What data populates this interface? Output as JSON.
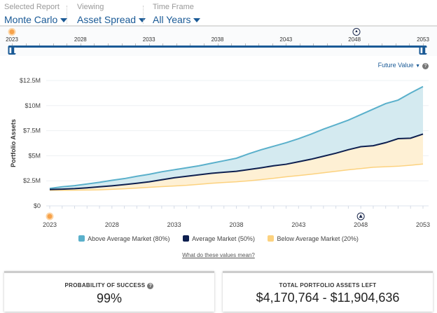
{
  "header": {
    "report": {
      "label": "Selected Report",
      "value": "Monte Carlo"
    },
    "viewing": {
      "label": "Viewing",
      "value": "Asset Spread"
    },
    "timeframe": {
      "label": "Time Frame",
      "value": "All Years"
    }
  },
  "timeline": {
    "years": [
      "2023",
      "2028",
      "2033",
      "2038",
      "2043",
      "2048",
      "2053"
    ],
    "start": "2023",
    "end": "2053"
  },
  "value_mode": "Future Value",
  "chart_data": {
    "type": "area",
    "ylabel": "Portfolio Assets",
    "x_start": 2023,
    "x_end": 2053,
    "xticks": [
      "2023",
      "2028",
      "2033",
      "2038",
      "2043",
      "2048",
      "2053"
    ],
    "yticks": [
      "$0",
      "$2.5M",
      "$5M",
      "$7.5M",
      "$10M",
      "$12.5M"
    ],
    "ylim": [
      0,
      12.5
    ],
    "units": "millions USD",
    "series": [
      {
        "name": "Above Average Market (80%)",
        "color": "#5ab0cb",
        "values": [
          1.74,
          1.9,
          2.02,
          2.18,
          2.35,
          2.55,
          2.72,
          2.95,
          3.15,
          3.4,
          3.6,
          3.8,
          4.0,
          4.25,
          4.5,
          4.75,
          5.2,
          5.6,
          5.95,
          6.3,
          6.7,
          7.15,
          7.65,
          8.1,
          8.55,
          9.1,
          9.65,
          10.2,
          10.55,
          11.25,
          11.9
        ]
      },
      {
        "name": "Average Market (50%)",
        "color": "#0d1f4f",
        "values": [
          1.63,
          1.67,
          1.72,
          1.8,
          1.9,
          2.0,
          2.12,
          2.25,
          2.4,
          2.6,
          2.8,
          2.95,
          3.1,
          3.25,
          3.35,
          3.45,
          3.62,
          3.8,
          4.0,
          4.15,
          4.4,
          4.65,
          4.95,
          5.25,
          5.6,
          5.9,
          6.0,
          6.3,
          6.7,
          6.75,
          7.16
        ]
      },
      {
        "name": "Below Average Market (20%)",
        "color": "#fcd27f",
        "values": [
          1.55,
          1.55,
          1.56,
          1.58,
          1.6,
          1.65,
          1.7,
          1.77,
          1.85,
          1.92,
          1.98,
          2.05,
          2.15,
          2.25,
          2.33,
          2.4,
          2.5,
          2.62,
          2.75,
          2.9,
          3.02,
          3.15,
          3.3,
          3.45,
          3.6,
          3.72,
          3.85,
          3.9,
          3.95,
          4.05,
          4.17
        ]
      }
    ]
  },
  "link": "What do these values mean?",
  "cards": {
    "success": {
      "title": "PROBABILITY OF SUCCESS",
      "value": "99%"
    },
    "assets": {
      "title": "TOTAL PORTFOLIO ASSETS LEFT",
      "value": "$4,170,764 - $11,904,636"
    }
  }
}
